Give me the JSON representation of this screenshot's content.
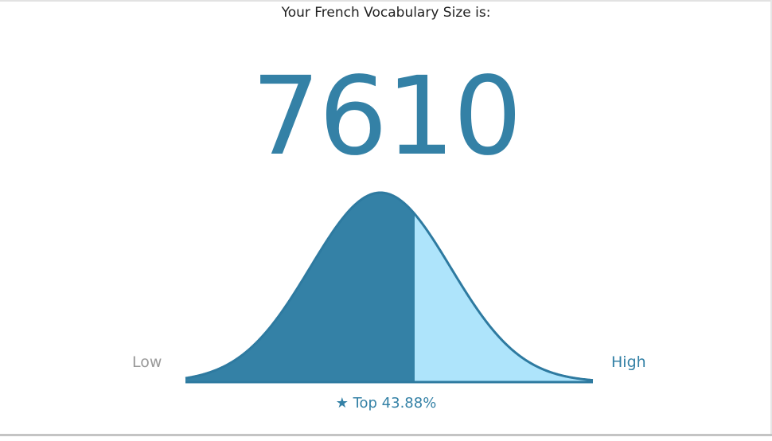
{
  "title": "Your French Vocabulary Size is:",
  "score": "7610",
  "low_label": "Low",
  "high_label": "High",
  "star_icon": "★",
  "percentile_text": "Top 43.88%",
  "percentile_value": 43.88,
  "colors": {
    "accent": "#3481a6",
    "light": "#aee4fb",
    "muted": "#999999"
  }
}
